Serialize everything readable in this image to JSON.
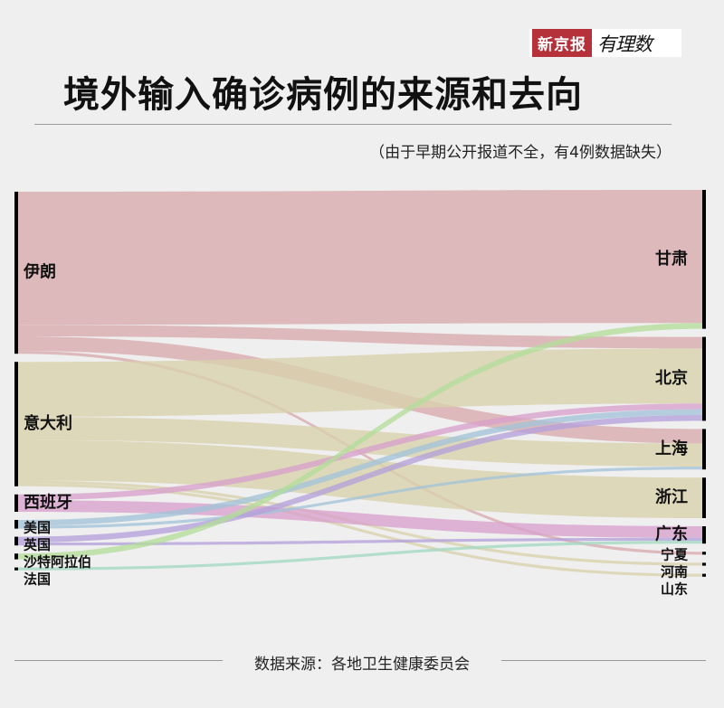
{
  "header": {
    "logo_brand": "新京报",
    "logo_column": "有理数",
    "title": "境外输入确诊病例的来源和去向",
    "subtitle": "（由于早期公开报道不全，有4例数据缺失）"
  },
  "footer": {
    "source": "数据来源：各地卫生健康委员会"
  },
  "chart_data": {
    "type": "sankey",
    "title": "境外输入确诊病例的来源和去向",
    "sources": [
      {
        "name": "伊朗",
        "color": "#d9a9ad"
      },
      {
        "name": "意大利",
        "color": "#d8d1ab"
      },
      {
        "name": "西班牙",
        "color": "#d7a0cc"
      },
      {
        "name": "美国",
        "color": "#a3c3d9"
      },
      {
        "name": "英国",
        "color": "#b3a0da"
      },
      {
        "name": "沙特阿拉伯",
        "color": "#b3dc9a"
      },
      {
        "name": "法国",
        "color": "#a3d8c2"
      }
    ],
    "targets": [
      "甘肃",
      "北京",
      "上海",
      "浙江",
      "广东",
      "宁夏",
      "河南",
      "山东"
    ],
    "flows": [
      {
        "from": "伊朗",
        "to": "甘肃",
        "value": 46
      },
      {
        "from": "伊朗",
        "to": "北京",
        "value": 4
      },
      {
        "from": "伊朗",
        "to": "上海",
        "value": 5
      },
      {
        "from": "伊朗",
        "to": "宁夏",
        "value": 1
      },
      {
        "from": "意大利",
        "to": "北京",
        "value": 19
      },
      {
        "from": "意大利",
        "to": "上海",
        "value": 8
      },
      {
        "from": "意大利",
        "to": "浙江",
        "value": 14
      },
      {
        "from": "意大利",
        "to": "河南",
        "value": 1
      },
      {
        "from": "意大利",
        "to": "山东",
        "value": 1
      },
      {
        "from": "西班牙",
        "to": "北京",
        "value": 2
      },
      {
        "from": "西班牙",
        "to": "广东",
        "value": 4
      },
      {
        "from": "美国",
        "to": "北京",
        "value": 2
      },
      {
        "from": "美国",
        "to": "上海",
        "value": 1
      },
      {
        "from": "英国",
        "to": "北京",
        "value": 2
      },
      {
        "from": "英国",
        "to": "广东",
        "value": 1
      },
      {
        "from": "沙特阿拉伯",
        "to": "甘肃",
        "value": 2
      },
      {
        "from": "法国",
        "to": "广东",
        "value": 1
      }
    ]
  }
}
